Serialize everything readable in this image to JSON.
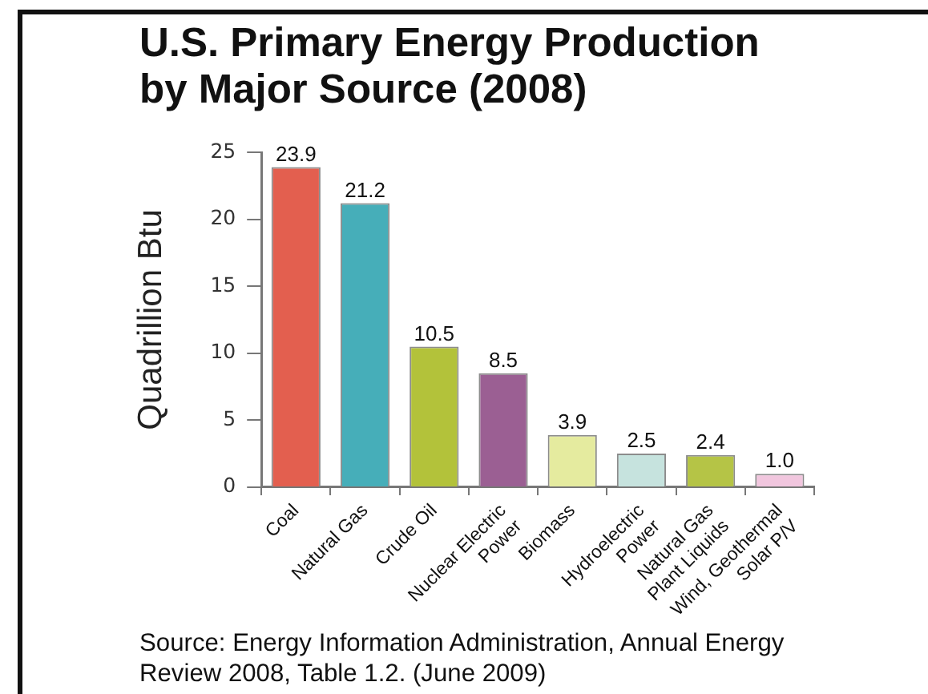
{
  "chart_data": {
    "type": "bar",
    "title": "U.S. Primary Energy Production by Major Source (2008)",
    "ylabel": "Quadrillion Btu",
    "categories": [
      "Coal",
      "Natural Gas",
      "Crude Oil",
      "Nuclear Electric\nPower",
      "Biomass",
      "Hydroelectric\nPower",
      "Natural Gas\nPlant Liquids",
      "Wind, Geothermal\nSolar P/V"
    ],
    "values": [
      23.9,
      21.2,
      10.5,
      8.5,
      3.9,
      2.5,
      2.4,
      1.0
    ],
    "value_labels": [
      "23.9",
      "21.2",
      "10.5",
      "8.5",
      "3.9",
      "2.5",
      "2.4",
      "1.0"
    ],
    "colors": [
      "#e35f4f",
      "#46aeb9",
      "#b3c23a",
      "#9b5f93",
      "#e5eb9f",
      "#c6e3de",
      "#b5c446",
      "#f1c6de"
    ],
    "ylim": [
      0,
      25
    ],
    "yticks": [
      0,
      5,
      10,
      15,
      20,
      25
    ],
    "annotations": [
      "Source: Energy Information Administration, Annual Energy Review 2008, Table 1.2. (June 2009)"
    ]
  }
}
